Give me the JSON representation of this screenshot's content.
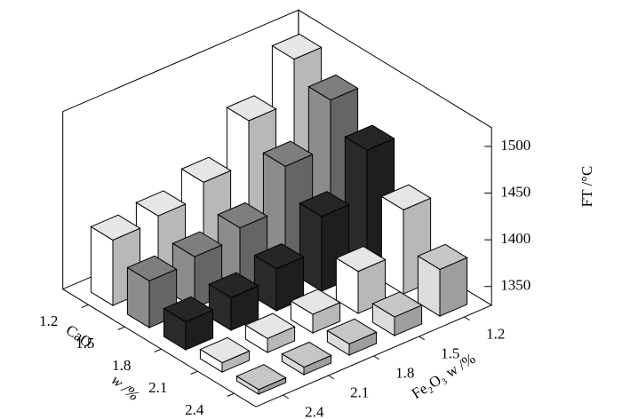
{
  "chart_data": {
    "type": "bar3d",
    "x_label": "Fe₂O₃ w /%",
    "row_label": "CaO",
    "row_unit_label": "w /%",
    "z_label": "FT /°C",
    "categories": [
      "1.2",
      "1.5",
      "1.8",
      "2.1",
      "2.4"
    ],
    "row_categories": [
      "1.2",
      "1.5",
      "1.8",
      "2.1",
      "2.4"
    ],
    "series": [
      {
        "color": "#ffffff",
        "values": [
          1510,
          1465,
          1420,
          1405,
          1400
        ]
      },
      {
        "color": "#8c8c8c",
        "values": [
          1490,
          1440,
          1395,
          1385,
          1380
        ]
      },
      {
        "color": "#2a2a2a",
        "values": [
          1460,
          1410,
          1375,
          1365,
          1360
        ]
      },
      {
        "color": "#ffffff",
        "values": [
          1420,
          1375,
          1350,
          1345,
          1340
        ]
      },
      {
        "color": "#dcdcdc",
        "values": [
          1380,
          1350,
          1342,
          1338,
          1335
        ]
      }
    ],
    "zlim": [
      1330,
      1520
    ],
    "zticks": [
      1350,
      1400,
      1450,
      1500
    ]
  }
}
